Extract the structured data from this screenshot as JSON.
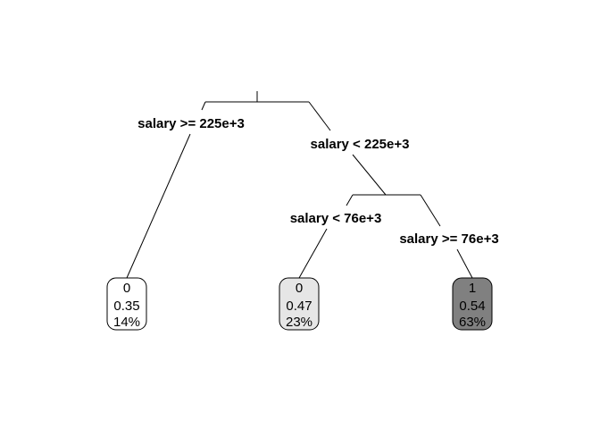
{
  "tree": {
    "root": {
      "left_split_label": "salary >= 225e+3",
      "right_split_label": "salary < 225e+3"
    },
    "inner": {
      "left_split_label": "salary < 76e+3",
      "right_split_label": "salary >= 76e+3"
    },
    "leaves": [
      {
        "class": "0",
        "prob": "0.35",
        "pct": "14%",
        "fill": "#ffffff"
      },
      {
        "class": "0",
        "prob": "0.47",
        "pct": "23%",
        "fill": "#e6e6e6"
      },
      {
        "class": "1",
        "prob": "0.54",
        "pct": "63%",
        "fill": "#808080"
      }
    ]
  }
}
